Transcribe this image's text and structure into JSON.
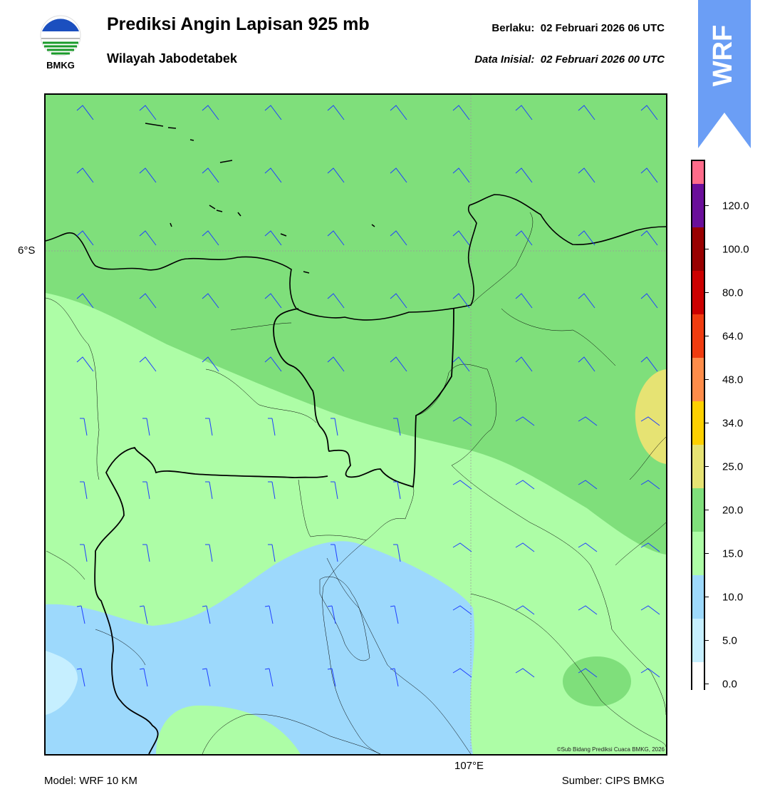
{
  "header": {
    "title": "Prediksi Angin Lapisan 925 mb",
    "subtitle": "Wilayah Jabodetabek",
    "valid_label": "Berlaku:  02 Februari 2026 06 UTC",
    "init_label": "Data Inisial:  02 Februari 2026 00 UTC"
  },
  "logo": {
    "text": "BMKG",
    "icon": "bmkg-logo-icon"
  },
  "banner": {
    "text": "WRF",
    "color": "#6b9ef5"
  },
  "map": {
    "lat_label": "6°S",
    "lon_label": "107°E",
    "credit": "©Sub Bidang Prediksi Cuaca BMKG, 2026",
    "barb_color": "#1f3fff",
    "colors": {
      "c0": "#ffffff",
      "c5": "#c6efff",
      "c10": "#9dd9fc",
      "c15": "#adfda6",
      "c20": "#7fdf7b",
      "c25": "#e6e373"
    }
  },
  "footer": {
    "model": "Model: WRF 10 KM",
    "source": "Sumber: CIPS BMKG"
  },
  "legend": {
    "ticks": [
      "0.0",
      "5.0",
      "10.0",
      "15.0",
      "20.0",
      "25.0",
      "34.0",
      "48.0",
      "64.0",
      "80.0",
      "100.0",
      "120.0"
    ],
    "colors": [
      "#ffffff",
      "#c6efff",
      "#9dd9fc",
      "#adfda6",
      "#7fdf7b",
      "#e6e373",
      "#fdd000",
      "#ff8c4a",
      "#f03c10",
      "#cc0000",
      "#990000",
      "#6a0f9a",
      "#ff6b8a"
    ]
  }
}
